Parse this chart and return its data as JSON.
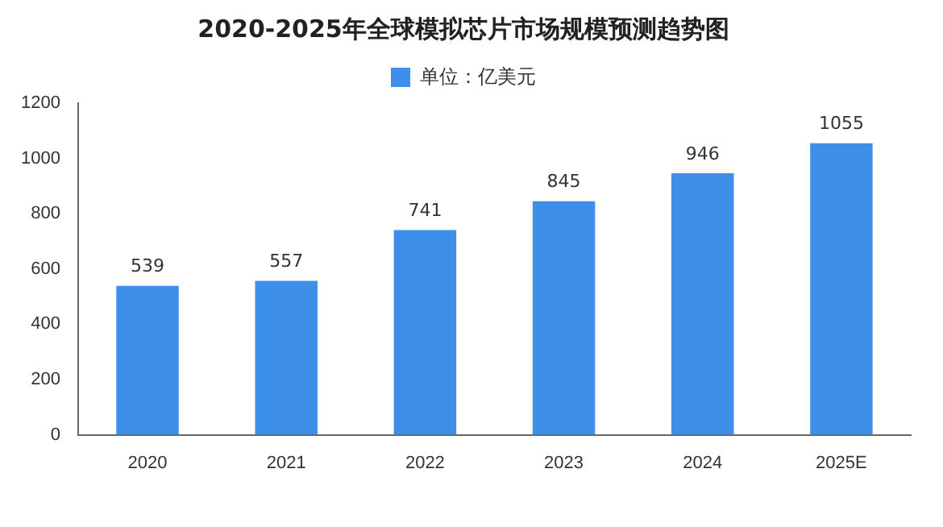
{
  "chart_data": {
    "type": "bar",
    "title": "2020-2025年全球模拟芯片市场规模预测趋势图",
    "categories": [
      "2020",
      "2021",
      "2022",
      "2023",
      "2024",
      "2025E"
    ],
    "series": [
      {
        "name": "单位：亿美元",
        "color": "#3d8fe8",
        "values": [
          539,
          557,
          741,
          845,
          946,
          1055
        ]
      }
    ],
    "ylim": [
      0,
      1200
    ],
    "yticks": [
      0,
      200,
      400,
      600,
      800,
      1000,
      1200
    ],
    "grid": false,
    "legend": "top",
    "data_labels": true
  }
}
